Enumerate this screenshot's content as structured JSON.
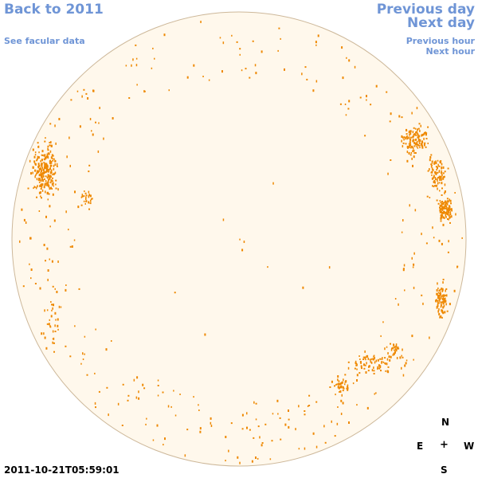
{
  "nav": {
    "back": "Back to 2011",
    "facular": "See facular data",
    "prev_day": "Previous day",
    "next_day": "Next day",
    "prev_hour": "Previous hour",
    "next_hour": "Next hour"
  },
  "compass": {
    "north": "N",
    "south": "S",
    "east": "E",
    "west": "W",
    "center": "+"
  },
  "timestamp": "2011-10-21T05:59:01",
  "colors": {
    "link": "#6f95d6",
    "disk_fill": "#fff8ec",
    "disk_edge": "#cdb89a",
    "spot": "#ee8800"
  }
}
